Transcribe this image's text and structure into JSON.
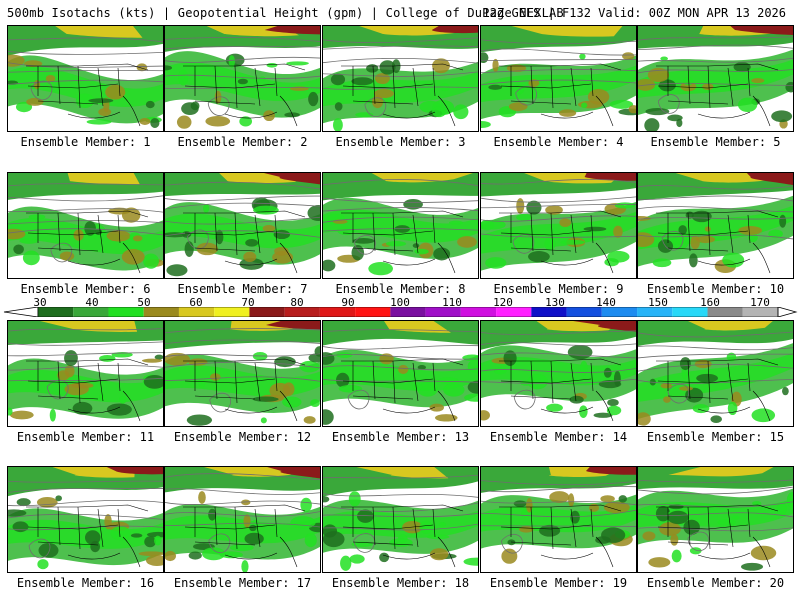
{
  "header": {
    "title": "500mb Isotachs (kts) | Geopotential Height (gpm) | College of DuPage NEXLAB",
    "valid": "12Z GEFS | F132 Valid: 00Z MON APR 13 2026"
  },
  "colorbar": {
    "labels": [
      "30",
      "40",
      "50",
      "60",
      "70",
      "80",
      "90",
      "100",
      "110",
      "120",
      "130",
      "140",
      "150",
      "160",
      "170"
    ],
    "colors": [
      "#1e6e1e",
      "#3aa83a",
      "#22e022",
      "#9a8a1e",
      "#d8c820",
      "#f0f020",
      "#8b1a1a",
      "#b81e1e",
      "#e01818",
      "#ff1414",
      "#7a10a0",
      "#a010c8",
      "#d010e0",
      "#ff20ff",
      "#1010c8",
      "#1450e0",
      "#1e8cf0",
      "#28b4f8",
      "#28d8f8",
      "#8a8a8a",
      "#b4b4b4"
    ]
  },
  "panels": [
    {
      "label": "Ensemble Member: 1"
    },
    {
      "label": "Ensemble Member: 2"
    },
    {
      "label": "Ensemble Member: 3"
    },
    {
      "label": "Ensemble Member: 4"
    },
    {
      "label": "Ensemble Member: 5"
    },
    {
      "label": "Ensemble Member: 6"
    },
    {
      "label": "Ensemble Member: 7"
    },
    {
      "label": "Ensemble Member: 8"
    },
    {
      "label": "Ensemble Member: 9"
    },
    {
      "label": "Ensemble Member: 10"
    },
    {
      "label": "Ensemble Member: 11"
    },
    {
      "label": "Ensemble Member: 12"
    },
    {
      "label": "Ensemble Member: 13"
    },
    {
      "label": "Ensemble Member: 14"
    },
    {
      "label": "Ensemble Member: 15"
    },
    {
      "label": "Ensemble Member: 16"
    },
    {
      "label": "Ensemble Member: 17"
    },
    {
      "label": "Ensemble Member: 18"
    },
    {
      "label": "Ensemble Member: 19"
    },
    {
      "label": "Ensemble Member: 20"
    }
  ]
}
